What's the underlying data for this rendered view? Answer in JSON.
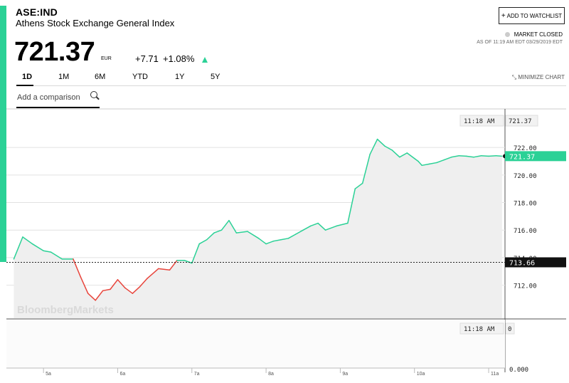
{
  "header": {
    "ticker": "ASE:IND",
    "name": "Athens Stock Exchange General Index",
    "price": "721.37",
    "currency": "EUR",
    "change": "+7.71",
    "change_pct": "+1.08%",
    "watchlist_label": "ADD TO WATCHLIST",
    "market_status": "MARKET CLOSED",
    "as_of": "AS OF 11:19 AM EDT 03/29/2019 EDT"
  },
  "tabs": [
    "1D",
    "1M",
    "6M",
    "YTD",
    "1Y",
    "5Y"
  ],
  "active_tab": "1D",
  "minimize_label": "MINIMIZE CHART",
  "compare_placeholder": "Add a comparison",
  "watermark": "BloombergMarkets",
  "colors": {
    "up": "#2bd196",
    "down": "#e8453c",
    "accent": "#2bd196"
  },
  "icons": {
    "watchlist": "plus-icon",
    "search": "search-icon",
    "minimize": "minimize-icon",
    "status": "status-dot-icon",
    "direction": "up-arrow-icon"
  },
  "chart_data": {
    "type": "line",
    "x_labels": [
      "5a",
      "6a",
      "7a",
      "8a",
      "9a",
      "10a",
      "11a"
    ],
    "y_ticks": [
      712.0,
      714.0,
      716.0,
      718.0,
      720.0,
      722.0
    ],
    "y_ticks_text": [
      "712.00",
      "714.00",
      "716.00",
      "718.00",
      "720.00",
      "722.00"
    ],
    "ylim": [
      709.6,
      724.8
    ],
    "xlim": [
      4.5,
      11.22
    ],
    "previous_close": 713.66,
    "previous_close_label": "713.66",
    "last_value": 721.37,
    "last_value_label": "721.37",
    "crosshair_time": "11:18 AM",
    "crosshair_value": "721.37",
    "volume_time": "11:18 AM",
    "volume_value": "0",
    "volume_axis_bottom": "0.000",
    "series": [
      {
        "x": [
          4.6,
          4.72,
          4.85,
          5.0,
          5.1,
          5.25,
          5.4,
          5.5,
          5.6,
          5.7,
          5.8,
          5.9,
          6.0,
          6.1,
          6.2,
          6.3,
          6.4,
          6.55,
          6.7,
          6.8,
          6.9,
          7.0,
          7.1,
          7.2,
          7.3,
          7.4,
          7.5,
          7.6,
          7.75,
          7.9,
          8.0,
          8.1,
          8.2,
          8.3,
          8.4,
          8.5,
          8.6,
          8.7,
          8.8,
          8.95,
          9.1,
          9.2,
          9.3,
          9.4,
          9.5,
          9.6,
          9.7,
          9.8,
          9.9,
          10.0,
          10.05,
          10.1,
          10.2,
          10.3,
          10.4,
          10.5,
          10.6,
          10.7,
          10.8,
          10.9,
          11.0,
          11.1,
          11.18
        ],
        "y": [
          713.9,
          715.5,
          715.0,
          714.5,
          714.4,
          713.9,
          713.9,
          712.6,
          711.4,
          710.9,
          711.6,
          711.7,
          712.4,
          711.8,
          711.4,
          711.9,
          712.5,
          713.2,
          713.1,
          713.8,
          713.8,
          713.6,
          715.0,
          715.3,
          715.8,
          716.0,
          716.7,
          715.8,
          715.9,
          715.4,
          715.0,
          715.2,
          715.3,
          715.4,
          715.7,
          716.0,
          716.3,
          716.5,
          716.0,
          716.3,
          716.5,
          719.0,
          719.4,
          721.5,
          722.6,
          722.1,
          721.8,
          721.3,
          721.6,
          721.2,
          721.0,
          720.7,
          720.8,
          720.9,
          721.1,
          721.3,
          721.4,
          721.37,
          721.3,
          721.4,
          721.37,
          721.4,
          721.37
        ]
      }
    ]
  }
}
